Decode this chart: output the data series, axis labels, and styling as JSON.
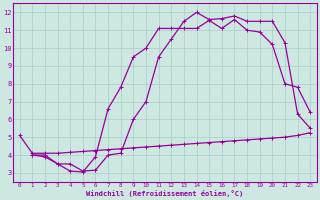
{
  "bg_color": "#cce8e0",
  "line_color": "#990099",
  "grid_color": "#aacccc",
  "ylabel_values": [
    3,
    4,
    5,
    6,
    7,
    8,
    9,
    10,
    11,
    12
  ],
  "xlabel_values": [
    0,
    1,
    2,
    3,
    4,
    5,
    6,
    7,
    8,
    9,
    10,
    11,
    12,
    13,
    14,
    15,
    16,
    17,
    18,
    19,
    20,
    21,
    22,
    23
  ],
  "xlabel": "Windchill (Refroidissement éolien,°C)",
  "xlim": [
    -0.5,
    23.5
  ],
  "ylim": [
    2.5,
    12.5
  ],
  "curve1_x": [
    0,
    1,
    2,
    3,
    4,
    5,
    6,
    7,
    8,
    9,
    10,
    11,
    12,
    13,
    14,
    15,
    16,
    17,
    18,
    19,
    20,
    21,
    22,
    23
  ],
  "curve1_y": [
    5.1,
    4.1,
    4.1,
    4.1,
    4.15,
    4.2,
    4.25,
    4.3,
    4.35,
    4.4,
    4.45,
    4.5,
    4.55,
    4.6,
    4.65,
    4.7,
    4.75,
    4.8,
    4.85,
    4.9,
    4.95,
    5.0,
    5.1,
    5.25
  ],
  "curve2_x": [
    1,
    2,
    3,
    4,
    5,
    6,
    7,
    8,
    9,
    10,
    11,
    12,
    13,
    14,
    15,
    16,
    17,
    18,
    19,
    20,
    21,
    22,
    23
  ],
  "curve2_y": [
    4.0,
    3.9,
    3.5,
    3.1,
    3.05,
    3.9,
    6.6,
    7.8,
    9.5,
    10.0,
    11.1,
    11.1,
    11.1,
    11.1,
    11.55,
    11.1,
    11.6,
    11.0,
    10.9,
    10.2,
    8.0,
    7.8,
    6.4
  ],
  "curve3_x": [
    1,
    2,
    3,
    4,
    5,
    6,
    7,
    8,
    9,
    10,
    11,
    12,
    13,
    14,
    15,
    16,
    17,
    18,
    19,
    20,
    21,
    22,
    23
  ],
  "curve3_y": [
    4.0,
    4.0,
    3.5,
    3.5,
    3.1,
    3.15,
    4.0,
    4.1,
    6.0,
    7.0,
    9.5,
    10.5,
    11.5,
    12.0,
    11.6,
    11.65,
    11.8,
    11.5,
    11.5,
    11.5,
    10.3,
    6.3,
    5.5
  ],
  "marker": "+"
}
